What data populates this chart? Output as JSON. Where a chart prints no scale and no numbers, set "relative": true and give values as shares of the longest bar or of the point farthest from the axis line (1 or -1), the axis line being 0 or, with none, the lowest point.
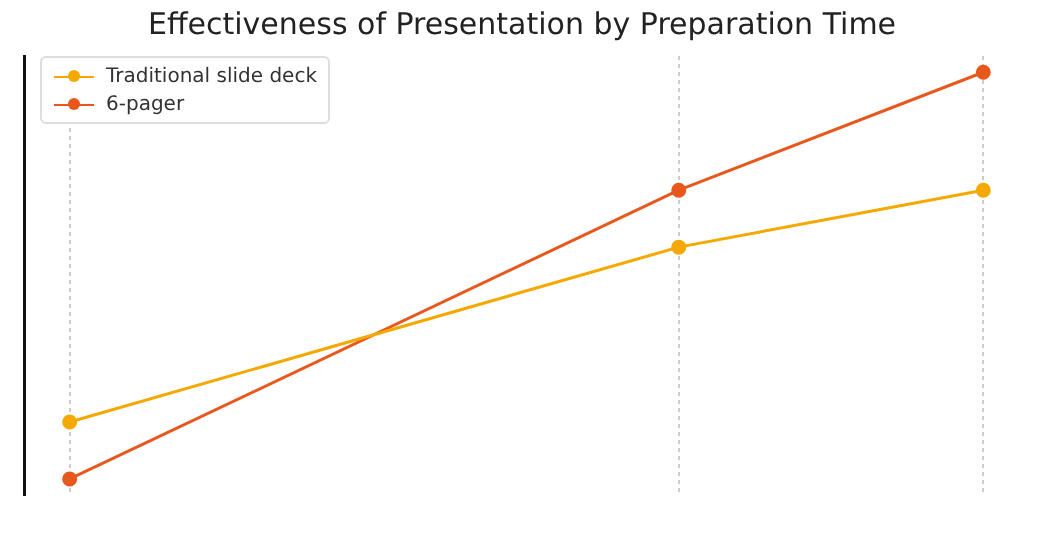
{
  "chart_data": {
    "type": "line",
    "title": "Effectiveness of Presentation by Preparation Time",
    "relative": true,
    "categories": [
      null,
      null,
      null,
      null
    ],
    "grid": "x",
    "legend": "top left",
    "marker": "circle",
    "series": [
      {
        "name": "Traditional slide deck",
        "color": "#f5a800",
        "values": [
          0.14,
          null,
          0.57,
          0.71
        ]
      },
      {
        "name": "6-pager",
        "color": "#e8581c",
        "values": [
          0,
          null,
          0.71,
          1
        ]
      }
    ]
  }
}
